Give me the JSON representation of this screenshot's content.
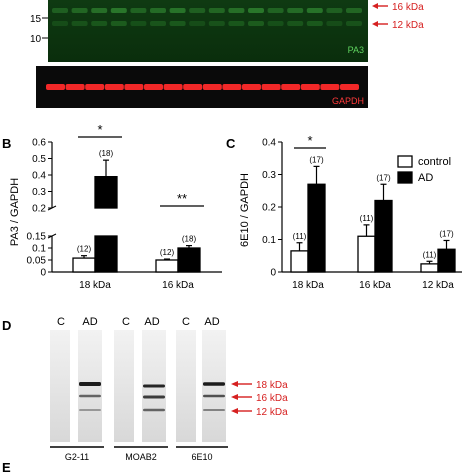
{
  "blot_top": {
    "markers_left": [
      "15",
      "10"
    ],
    "antibody_label": "PA3",
    "reference_label": "GAPDH",
    "arrows_right": [
      "16 kDa",
      "12 kDa"
    ],
    "colors": {
      "pa3_band": "#2c8c2c",
      "gapdh_band": "#ff2a2a",
      "arrow": "#d62020"
    }
  },
  "panel_b": {
    "letter": "B",
    "ylabel": "PA3 / GAPDH",
    "chart_data": {
      "type": "bar",
      "categories": [
        "18 kDa",
        "16 kDa"
      ],
      "series": [
        {
          "name": "control",
          "values": [
            0.058,
            0.05
          ],
          "errors": [
            0.01,
            0.004
          ],
          "n": [
            "(12)",
            "(12)"
          ],
          "fill": "#ffffff"
        },
        {
          "name": "AD",
          "values": [
            0.39,
            0.1
          ],
          "errors": [
            0.1,
            0.01
          ],
          "n": [
            "(18)",
            "(18)"
          ],
          "fill": "#000000"
        }
      ],
      "axis_broken": true,
      "upper_ticks": [
        0.2,
        0.3,
        0.4,
        0.5,
        0.6
      ],
      "lower_ticks": [
        0,
        0.05,
        0.1,
        0.15
      ],
      "significance": [
        "*",
        "**"
      ]
    }
  },
  "panel_c": {
    "letter": "C",
    "ylabel": "6E10 / GAPDH",
    "chart_data": {
      "type": "bar",
      "categories": [
        "18 kDa",
        "16 kDa",
        "12 kDa"
      ],
      "series": [
        {
          "name": "control",
          "values": [
            0.065,
            0.11,
            0.025
          ],
          "errors": [
            0.025,
            0.035,
            0.008
          ],
          "n": [
            "(11)",
            "(11)",
            "(11)"
          ],
          "fill": "#ffffff"
        },
        {
          "name": "AD",
          "values": [
            0.27,
            0.22,
            0.07
          ],
          "errors": [
            0.055,
            0.05,
            0.027
          ],
          "n": [
            "(17)",
            "(17)",
            "(17)"
          ],
          "fill": "#000000"
        }
      ],
      "ylim": [
        0,
        0.4
      ],
      "ticks": [
        0,
        0.1,
        0.2,
        0.3,
        0.4
      ],
      "significance": [
        "*"
      ],
      "legend": {
        "entries": [
          "control",
          "AD"
        ],
        "placement": "top-right"
      }
    }
  },
  "panel_d": {
    "letter": "D",
    "lane_headers": [
      "C",
      "AD",
      "C",
      "AD",
      "C",
      "AD"
    ],
    "antibodies": [
      "G2-11",
      "MOAB2",
      "6E10"
    ],
    "arrows": [
      "18 kDa",
      "16 kDa",
      "12 kDa"
    ]
  },
  "panel_e": {
    "letter": "E"
  }
}
